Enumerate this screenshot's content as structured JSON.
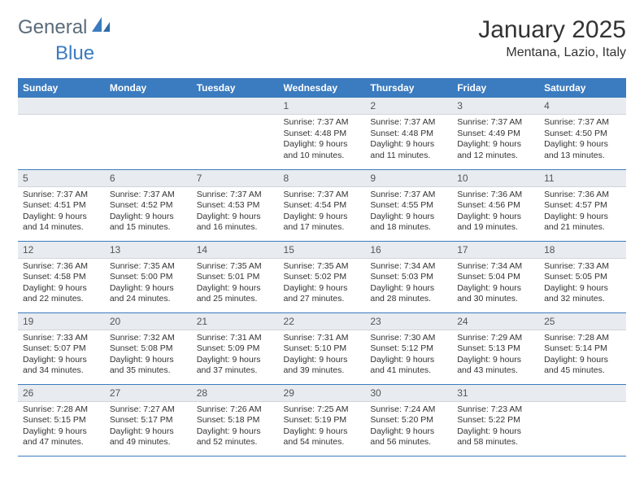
{
  "logo": {
    "word1": "General",
    "word2": "Blue"
  },
  "brand_color": "#3b7bbf",
  "header_bg": "#3b7bbf",
  "daynum_bg": "#e8ebef",
  "text_color": "#333333",
  "month_title": "January 2025",
  "location": "Mentana, Lazio, Italy",
  "weekdays": [
    "Sunday",
    "Monday",
    "Tuesday",
    "Wednesday",
    "Thursday",
    "Friday",
    "Saturday"
  ],
  "weeks": [
    [
      null,
      null,
      null,
      {
        "n": "1",
        "sr": "Sunrise: 7:37 AM",
        "ss": "Sunset: 4:48 PM",
        "d1": "Daylight: 9 hours",
        "d2": "and 10 minutes."
      },
      {
        "n": "2",
        "sr": "Sunrise: 7:37 AM",
        "ss": "Sunset: 4:48 PM",
        "d1": "Daylight: 9 hours",
        "d2": "and 11 minutes."
      },
      {
        "n": "3",
        "sr": "Sunrise: 7:37 AM",
        "ss": "Sunset: 4:49 PM",
        "d1": "Daylight: 9 hours",
        "d2": "and 12 minutes."
      },
      {
        "n": "4",
        "sr": "Sunrise: 7:37 AM",
        "ss": "Sunset: 4:50 PM",
        "d1": "Daylight: 9 hours",
        "d2": "and 13 minutes."
      }
    ],
    [
      {
        "n": "5",
        "sr": "Sunrise: 7:37 AM",
        "ss": "Sunset: 4:51 PM",
        "d1": "Daylight: 9 hours",
        "d2": "and 14 minutes."
      },
      {
        "n": "6",
        "sr": "Sunrise: 7:37 AM",
        "ss": "Sunset: 4:52 PM",
        "d1": "Daylight: 9 hours",
        "d2": "and 15 minutes."
      },
      {
        "n": "7",
        "sr": "Sunrise: 7:37 AM",
        "ss": "Sunset: 4:53 PM",
        "d1": "Daylight: 9 hours",
        "d2": "and 16 minutes."
      },
      {
        "n": "8",
        "sr": "Sunrise: 7:37 AM",
        "ss": "Sunset: 4:54 PM",
        "d1": "Daylight: 9 hours",
        "d2": "and 17 minutes."
      },
      {
        "n": "9",
        "sr": "Sunrise: 7:37 AM",
        "ss": "Sunset: 4:55 PM",
        "d1": "Daylight: 9 hours",
        "d2": "and 18 minutes."
      },
      {
        "n": "10",
        "sr": "Sunrise: 7:36 AM",
        "ss": "Sunset: 4:56 PM",
        "d1": "Daylight: 9 hours",
        "d2": "and 19 minutes."
      },
      {
        "n": "11",
        "sr": "Sunrise: 7:36 AM",
        "ss": "Sunset: 4:57 PM",
        "d1": "Daylight: 9 hours",
        "d2": "and 21 minutes."
      }
    ],
    [
      {
        "n": "12",
        "sr": "Sunrise: 7:36 AM",
        "ss": "Sunset: 4:58 PM",
        "d1": "Daylight: 9 hours",
        "d2": "and 22 minutes."
      },
      {
        "n": "13",
        "sr": "Sunrise: 7:35 AM",
        "ss": "Sunset: 5:00 PM",
        "d1": "Daylight: 9 hours",
        "d2": "and 24 minutes."
      },
      {
        "n": "14",
        "sr": "Sunrise: 7:35 AM",
        "ss": "Sunset: 5:01 PM",
        "d1": "Daylight: 9 hours",
        "d2": "and 25 minutes."
      },
      {
        "n": "15",
        "sr": "Sunrise: 7:35 AM",
        "ss": "Sunset: 5:02 PM",
        "d1": "Daylight: 9 hours",
        "d2": "and 27 minutes."
      },
      {
        "n": "16",
        "sr": "Sunrise: 7:34 AM",
        "ss": "Sunset: 5:03 PM",
        "d1": "Daylight: 9 hours",
        "d2": "and 28 minutes."
      },
      {
        "n": "17",
        "sr": "Sunrise: 7:34 AM",
        "ss": "Sunset: 5:04 PM",
        "d1": "Daylight: 9 hours",
        "d2": "and 30 minutes."
      },
      {
        "n": "18",
        "sr": "Sunrise: 7:33 AM",
        "ss": "Sunset: 5:05 PM",
        "d1": "Daylight: 9 hours",
        "d2": "and 32 minutes."
      }
    ],
    [
      {
        "n": "19",
        "sr": "Sunrise: 7:33 AM",
        "ss": "Sunset: 5:07 PM",
        "d1": "Daylight: 9 hours",
        "d2": "and 34 minutes."
      },
      {
        "n": "20",
        "sr": "Sunrise: 7:32 AM",
        "ss": "Sunset: 5:08 PM",
        "d1": "Daylight: 9 hours",
        "d2": "and 35 minutes."
      },
      {
        "n": "21",
        "sr": "Sunrise: 7:31 AM",
        "ss": "Sunset: 5:09 PM",
        "d1": "Daylight: 9 hours",
        "d2": "and 37 minutes."
      },
      {
        "n": "22",
        "sr": "Sunrise: 7:31 AM",
        "ss": "Sunset: 5:10 PM",
        "d1": "Daylight: 9 hours",
        "d2": "and 39 minutes."
      },
      {
        "n": "23",
        "sr": "Sunrise: 7:30 AM",
        "ss": "Sunset: 5:12 PM",
        "d1": "Daylight: 9 hours",
        "d2": "and 41 minutes."
      },
      {
        "n": "24",
        "sr": "Sunrise: 7:29 AM",
        "ss": "Sunset: 5:13 PM",
        "d1": "Daylight: 9 hours",
        "d2": "and 43 minutes."
      },
      {
        "n": "25",
        "sr": "Sunrise: 7:28 AM",
        "ss": "Sunset: 5:14 PM",
        "d1": "Daylight: 9 hours",
        "d2": "and 45 minutes."
      }
    ],
    [
      {
        "n": "26",
        "sr": "Sunrise: 7:28 AM",
        "ss": "Sunset: 5:15 PM",
        "d1": "Daylight: 9 hours",
        "d2": "and 47 minutes."
      },
      {
        "n": "27",
        "sr": "Sunrise: 7:27 AM",
        "ss": "Sunset: 5:17 PM",
        "d1": "Daylight: 9 hours",
        "d2": "and 49 minutes."
      },
      {
        "n": "28",
        "sr": "Sunrise: 7:26 AM",
        "ss": "Sunset: 5:18 PM",
        "d1": "Daylight: 9 hours",
        "d2": "and 52 minutes."
      },
      {
        "n": "29",
        "sr": "Sunrise: 7:25 AM",
        "ss": "Sunset: 5:19 PM",
        "d1": "Daylight: 9 hours",
        "d2": "and 54 minutes."
      },
      {
        "n": "30",
        "sr": "Sunrise: 7:24 AM",
        "ss": "Sunset: 5:20 PM",
        "d1": "Daylight: 9 hours",
        "d2": "and 56 minutes."
      },
      {
        "n": "31",
        "sr": "Sunrise: 7:23 AM",
        "ss": "Sunset: 5:22 PM",
        "d1": "Daylight: 9 hours",
        "d2": "and 58 minutes."
      },
      null
    ]
  ]
}
